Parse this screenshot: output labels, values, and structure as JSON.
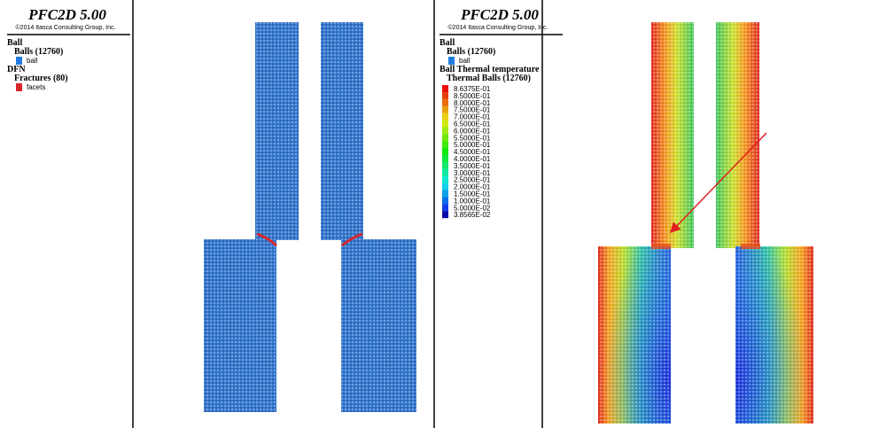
{
  "left_panel": {
    "title": "PFC2D 5.00",
    "copyright": "©2014 Itasca Consulting Group, Inc.",
    "legend": [
      {
        "text": "Ball",
        "level": 0
      },
      {
        "text": "Balls (12760)",
        "level": 1
      },
      {
        "text": "ball",
        "level": 2,
        "swatch": "#1f7be0"
      },
      {
        "text": "DFN",
        "level": 0
      },
      {
        "text": "Fractures (80)",
        "level": 1
      },
      {
        "text": "facets",
        "level": 2,
        "swatch": "#d8262c"
      }
    ]
  },
  "right_panel": {
    "title": "PFC2D 5.00",
    "copyright": "©2014 Itasca Consulting Group, Inc.",
    "legend": [
      {
        "text": "Ball",
        "level": 0
      },
      {
        "text": "Balls (12760)",
        "level": 1
      },
      {
        "text": "ball",
        "level": 2,
        "swatch": "#1f7be0"
      },
      {
        "text": "Ball Thermal temperature",
        "level": 0
      },
      {
        "text": "Thermal Balls (12760)",
        "level": 1
      }
    ],
    "colorbar": [
      "8.6375E-01",
      "8.5000E-01",
      "8.0000E-01",
      "7.5000E-01",
      "7.0000E-01",
      "6.5000E-01",
      "6.0000E-01",
      "5.5000E-01",
      "5.0000E-01",
      "4.5000E-01",
      "4.0000E-01",
      "3.5000E-01",
      "3.0000E-01",
      "2.5000E-01",
      "2.0000E-01",
      "1.5000E-01",
      "1.0000E-01",
      "5.0000E-02",
      "3.8565E-02"
    ]
  }
}
